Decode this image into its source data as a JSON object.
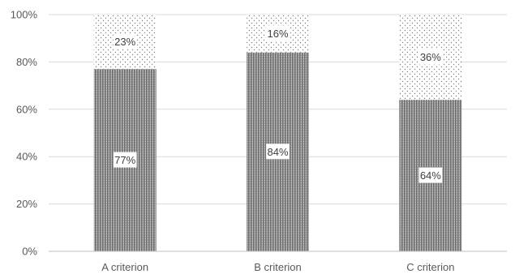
{
  "chart_data": {
    "type": "bar",
    "stacked": true,
    "percent": true,
    "categories": [
      "A criterion",
      "B criterion",
      "C criterion"
    ],
    "series": [
      {
        "values": [
          77,
          84,
          64
        ],
        "labels": [
          "77%",
          "84%",
          "64%"
        ],
        "pattern": "dense-gray"
      },
      {
        "values": [
          23,
          16,
          36
        ],
        "labels": [
          "23%",
          "16%",
          "36%"
        ],
        "pattern": "dotted"
      }
    ],
    "y_ticks": [
      "0%",
      "20%",
      "40%",
      "60%",
      "80%",
      "100%"
    ],
    "ylim": [
      0,
      100
    ],
    "grid": true,
    "legend": "none",
    "colors": {
      "grid": "#d9d9d9",
      "axis": "#bfbfbf",
      "fill_dark": "#7f7f7f",
      "dot": "#808080"
    }
  }
}
